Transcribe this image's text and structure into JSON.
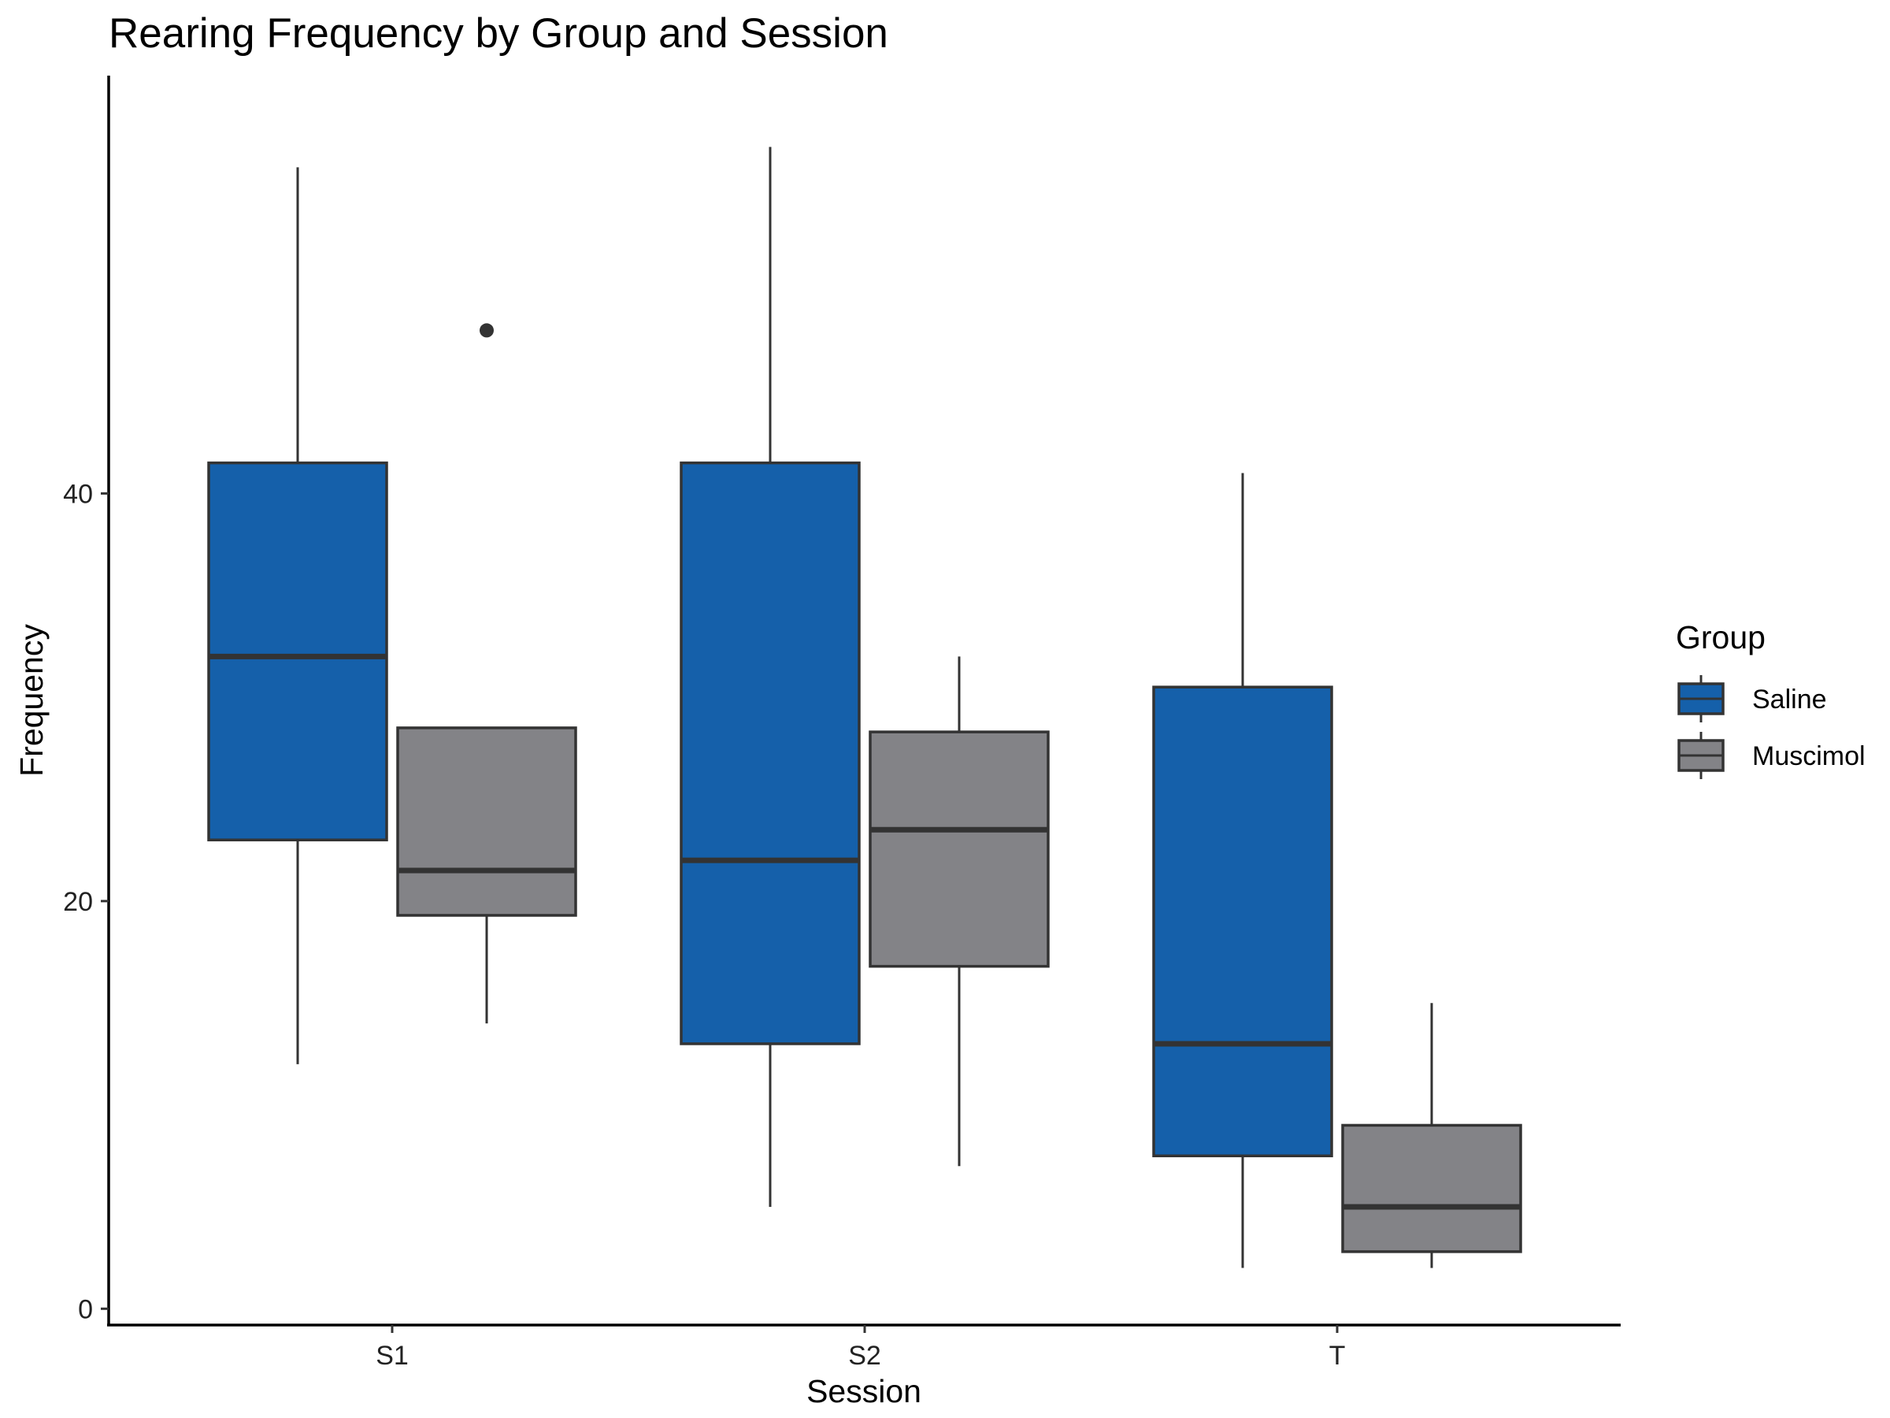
{
  "chart_data": {
    "type": "boxplot",
    "title": "Rearing Frequency by Group and Session",
    "xlabel": "Session",
    "ylabel": "Frequency",
    "categories": [
      "S1",
      "S2",
      "T"
    ],
    "ylim": [
      -0.8,
      60.5
    ],
    "yticks": [
      0,
      20,
      40
    ],
    "legend": {
      "title": "Group",
      "position": "right"
    },
    "series": [
      {
        "name": "Saline",
        "color": "#1560AA",
        "boxes": [
          {
            "category": "S1",
            "whisker_low": 12,
            "q1": 23,
            "median": 32,
            "q3": 41.5,
            "whisker_high": 56,
            "outliers": []
          },
          {
            "category": "S2",
            "whisker_low": 5,
            "q1": 13,
            "median": 22,
            "q3": 41.5,
            "whisker_high": 57,
            "outliers": []
          },
          {
            "category": "T",
            "whisker_low": 2,
            "q1": 7.5,
            "median": 13,
            "q3": 30.5,
            "whisker_high": 41,
            "outliers": []
          }
        ]
      },
      {
        "name": "Muscimol",
        "color": "#838387",
        "boxes": [
          {
            "category": "S1",
            "whisker_low": 14,
            "q1": 19.3,
            "median": 21.5,
            "q3": 28.5,
            "whisker_high": 28.5,
            "outliers": [
              48
            ]
          },
          {
            "category": "S2",
            "whisker_low": 7,
            "q1": 16.8,
            "median": 23.5,
            "q3": 28.3,
            "whisker_high": 32,
            "outliers": []
          },
          {
            "category": "T",
            "whisker_low": 2,
            "q1": 2.8,
            "median": 5,
            "q3": 9,
            "whisker_high": 15,
            "outliers": []
          }
        ]
      }
    ]
  }
}
